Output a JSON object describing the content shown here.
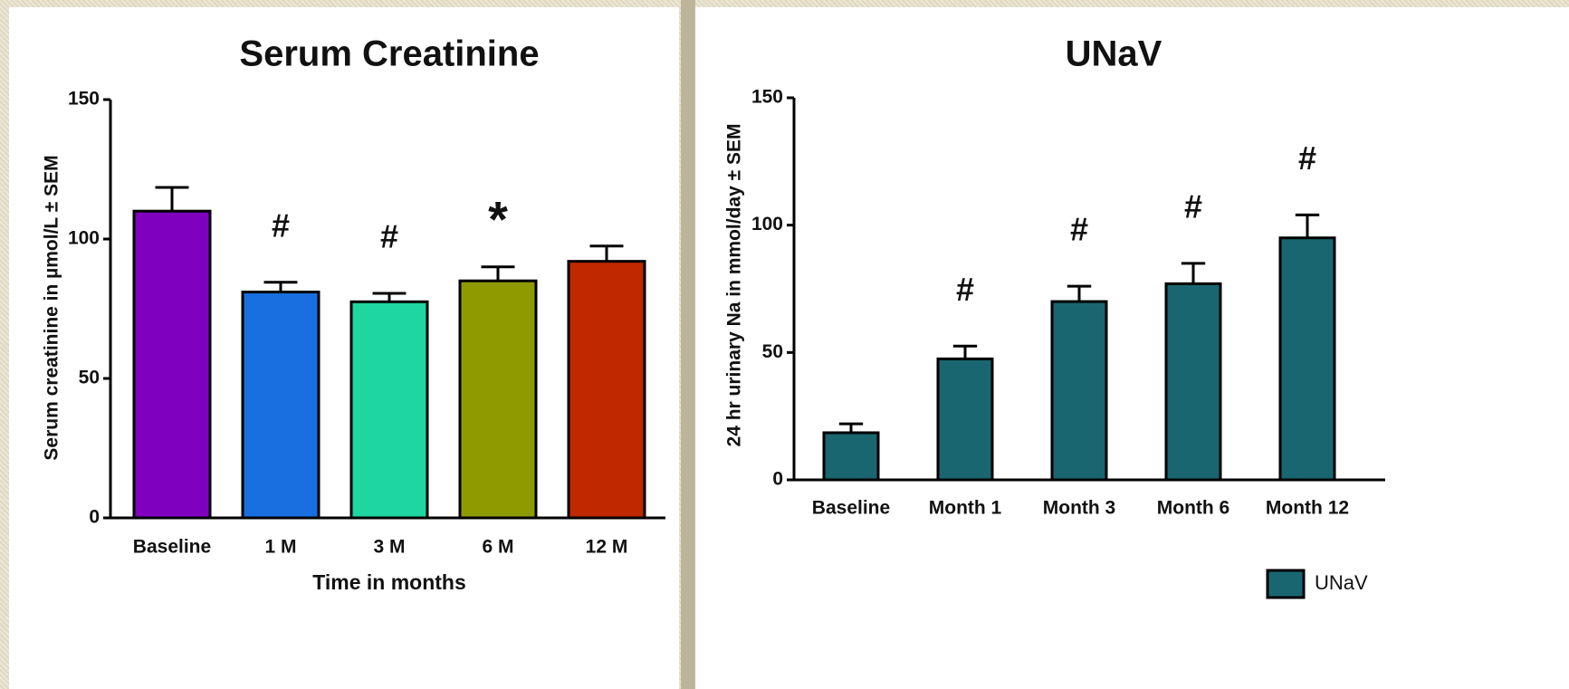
{
  "chart_data": [
    {
      "type": "bar",
      "title": "Serum Creatinine",
      "x_label": "Time in months",
      "y_label": "Serum creatinine in µmol/L ± SEM",
      "categories": [
        "Baseline",
        "1 M",
        "3 M",
        "6 M",
        "12 M"
      ],
      "values": [
        110,
        81,
        77.5,
        85,
        92
      ],
      "errors": [
        8.5,
        3.5,
        3,
        5,
        5.5
      ],
      "colors": [
        "#8000c0",
        "#1a6fe0",
        "#1ed6a0",
        "#8f9a00",
        "#c02800"
      ],
      "annotations": [
        null,
        "#",
        "#",
        "*",
        null
      ],
      "ylim": [
        0,
        150
      ],
      "yticks": [
        0,
        50,
        100,
        150
      ],
      "grid": false
    },
    {
      "type": "bar",
      "title": "UNaV",
      "y_label": "24 hr urinary Na in mmol/day ± SEM",
      "categories": [
        "Baseline",
        "Month 1",
        "Month 3",
        "Month 6",
        "Month 12"
      ],
      "series": [
        {
          "name": "UNaV",
          "color": "#1a6670",
          "values": [
            18.5,
            47.5,
            70,
            77,
            95
          ],
          "errors": [
            3.5,
            5,
            6,
            8,
            9
          ]
        }
      ],
      "annotations": [
        null,
        "#",
        "#",
        "#",
        "#"
      ],
      "ylim": [
        0,
        150
      ],
      "yticks": [
        0,
        50,
        100,
        150
      ],
      "grid": false,
      "legend": "bottom-right"
    }
  ]
}
